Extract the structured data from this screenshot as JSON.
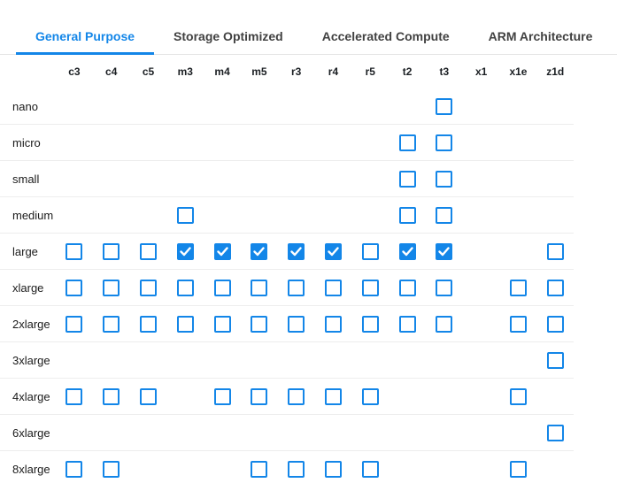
{
  "colors": {
    "accent": "#1386E8",
    "row_separator": "#ededed",
    "tab_separator": "#e4e4e4",
    "tab_text": "#414141",
    "text": "#1b1f23",
    "checkmark": "#ffffff"
  },
  "tabs": [
    {
      "label": "General Purpose",
      "active": true
    },
    {
      "label": "Storage Optimized",
      "active": false
    },
    {
      "label": "Accelerated Compute",
      "active": false
    },
    {
      "label": "ARM Architecture",
      "active": false
    }
  ],
  "matrix": {
    "columns": [
      "c3",
      "c4",
      "c5",
      "m3",
      "m4",
      "m5",
      "r3",
      "r4",
      "r5",
      "t2",
      "t3",
      "x1",
      "x1e",
      "z1d"
    ],
    "rows": [
      {
        "label": "nano",
        "cells": [
          null,
          null,
          null,
          null,
          null,
          null,
          null,
          null,
          null,
          null,
          false,
          null,
          null,
          null
        ]
      },
      {
        "label": "micro",
        "cells": [
          null,
          null,
          null,
          null,
          null,
          null,
          null,
          null,
          null,
          false,
          false,
          null,
          null,
          null
        ]
      },
      {
        "label": "small",
        "cells": [
          null,
          null,
          null,
          null,
          null,
          null,
          null,
          null,
          null,
          false,
          false,
          null,
          null,
          null
        ]
      },
      {
        "label": "medium",
        "cells": [
          null,
          null,
          null,
          false,
          null,
          null,
          null,
          null,
          null,
          false,
          false,
          null,
          null,
          null
        ]
      },
      {
        "label": "large",
        "cells": [
          false,
          false,
          false,
          true,
          true,
          true,
          true,
          true,
          false,
          true,
          true,
          null,
          null,
          false
        ]
      },
      {
        "label": "xlarge",
        "cells": [
          false,
          false,
          false,
          false,
          false,
          false,
          false,
          false,
          false,
          false,
          false,
          null,
          false,
          false
        ]
      },
      {
        "label": "2xlarge",
        "cells": [
          false,
          false,
          false,
          false,
          false,
          false,
          false,
          false,
          false,
          false,
          false,
          null,
          false,
          false
        ]
      },
      {
        "label": "3xlarge",
        "cells": [
          null,
          null,
          null,
          null,
          null,
          null,
          null,
          null,
          null,
          null,
          null,
          null,
          null,
          false
        ]
      },
      {
        "label": "4xlarge",
        "cells": [
          false,
          false,
          false,
          null,
          false,
          false,
          false,
          false,
          false,
          null,
          null,
          null,
          false,
          null
        ]
      },
      {
        "label": "6xlarge",
        "cells": [
          null,
          null,
          null,
          null,
          null,
          null,
          null,
          null,
          null,
          null,
          null,
          null,
          null,
          false
        ]
      },
      {
        "label": "8xlarge",
        "cells": [
          false,
          false,
          null,
          null,
          null,
          false,
          false,
          false,
          false,
          null,
          null,
          null,
          false,
          null
        ]
      }
    ]
  }
}
